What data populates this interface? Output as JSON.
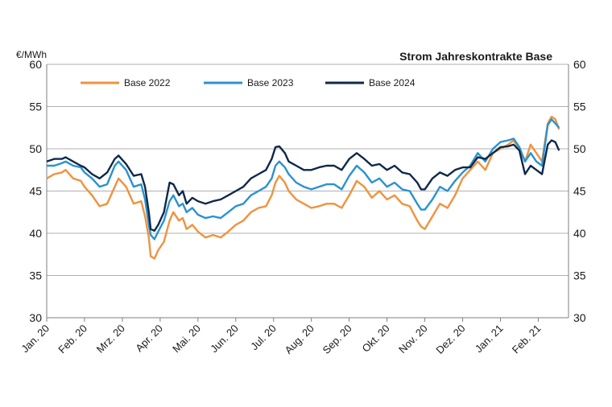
{
  "chart_data": {
    "type": "line",
    "title": "Strom Jahreskontrakte Base",
    "unit": "€/MWh",
    "xlabel": "",
    "ylabel": "",
    "ylim": [
      30,
      60
    ],
    "yticks": [
      30,
      35,
      40,
      45,
      50,
      55,
      60
    ],
    "ytick_labels": [
      "30",
      "35",
      "40",
      "45",
      "50",
      "55",
      "60"
    ],
    "secondary_y_axis": true,
    "x_range": [
      0,
      13.8
    ],
    "x_ticks": [
      {
        "x": 0,
        "label": "Jan. 20"
      },
      {
        "x": 1,
        "label": "Feb. 20"
      },
      {
        "x": 2,
        "label": "Mrz. 20"
      },
      {
        "x": 3,
        "label": "Apr. 20"
      },
      {
        "x": 4,
        "label": "Mai. 20"
      },
      {
        "x": 5,
        "label": "Jun. 20"
      },
      {
        "x": 6,
        "label": "Jul. 20"
      },
      {
        "x": 7,
        "label": "Aug. 20"
      },
      {
        "x": 8,
        "label": "Sep. 20"
      },
      {
        "x": 9,
        "label": "Okt. 20"
      },
      {
        "x": 10,
        "label": "Nov. 20"
      },
      {
        "x": 11,
        "label": "Dez. 20"
      },
      {
        "x": 12,
        "label": "Jan. 21"
      },
      {
        "x": 13,
        "label": "Feb. 21"
      }
    ],
    "grid": "horizontal",
    "legend": "top-left",
    "series": [
      {
        "name": "Base 2022",
        "color": "#f0923e",
        "points": [
          [
            0.0,
            46.5
          ],
          [
            0.2,
            47.0
          ],
          [
            0.4,
            47.2
          ],
          [
            0.5,
            47.5
          ],
          [
            0.7,
            46.5
          ],
          [
            0.9,
            46.2
          ],
          [
            1.0,
            45.5
          ],
          [
            1.2,
            44.5
          ],
          [
            1.4,
            43.2
          ],
          [
            1.6,
            43.5
          ],
          [
            1.8,
            45.5
          ],
          [
            1.9,
            46.5
          ],
          [
            2.1,
            45.5
          ],
          [
            2.3,
            43.5
          ],
          [
            2.5,
            43.8
          ],
          [
            2.6,
            42.0
          ],
          [
            2.7,
            39.5
          ],
          [
            2.75,
            37.3
          ],
          [
            2.85,
            37.0
          ],
          [
            2.95,
            38.0
          ],
          [
            3.1,
            39.0
          ],
          [
            3.25,
            41.5
          ],
          [
            3.35,
            42.5
          ],
          [
            3.5,
            41.5
          ],
          [
            3.6,
            41.8
          ],
          [
            3.7,
            40.5
          ],
          [
            3.85,
            41.0
          ],
          [
            4.0,
            40.2
          ],
          [
            4.2,
            39.5
          ],
          [
            4.4,
            39.8
          ],
          [
            4.6,
            39.5
          ],
          [
            4.8,
            40.2
          ],
          [
            5.0,
            41.0
          ],
          [
            5.2,
            41.5
          ],
          [
            5.4,
            42.5
          ],
          [
            5.6,
            43.0
          ],
          [
            5.8,
            43.2
          ],
          [
            5.95,
            44.5
          ],
          [
            6.05,
            46.0
          ],
          [
            6.15,
            46.8
          ],
          [
            6.3,
            46.0
          ],
          [
            6.4,
            45.0
          ],
          [
            6.6,
            44.0
          ],
          [
            6.8,
            43.5
          ],
          [
            7.0,
            43.0
          ],
          [
            7.2,
            43.2
          ],
          [
            7.4,
            43.5
          ],
          [
            7.6,
            43.5
          ],
          [
            7.8,
            43.0
          ],
          [
            8.0,
            44.5
          ],
          [
            8.2,
            46.2
          ],
          [
            8.4,
            45.5
          ],
          [
            8.6,
            44.2
          ],
          [
            8.8,
            45.0
          ],
          [
            9.0,
            44.0
          ],
          [
            9.2,
            44.5
          ],
          [
            9.4,
            43.5
          ],
          [
            9.6,
            43.2
          ],
          [
            9.8,
            41.5
          ],
          [
            9.9,
            40.8
          ],
          [
            10.0,
            40.5
          ],
          [
            10.2,
            42.0
          ],
          [
            10.4,
            43.5
          ],
          [
            10.6,
            43.0
          ],
          [
            10.8,
            44.5
          ],
          [
            11.0,
            46.5
          ],
          [
            11.2,
            47.5
          ],
          [
            11.4,
            48.5
          ],
          [
            11.6,
            47.5
          ],
          [
            11.8,
            49.5
          ],
          [
            12.0,
            50.0
          ],
          [
            12.2,
            50.5
          ],
          [
            12.35,
            51.0
          ],
          [
            12.5,
            50.0
          ],
          [
            12.65,
            48.5
          ],
          [
            12.8,
            50.5
          ],
          [
            12.95,
            49.5
          ],
          [
            13.1,
            48.5
          ],
          [
            13.25,
            53.0
          ],
          [
            13.35,
            53.8
          ],
          [
            13.45,
            53.5
          ],
          [
            13.55,
            52.3
          ]
        ]
      },
      {
        "name": "Base 2023",
        "color": "#2a92cf",
        "points": [
          [
            0.0,
            48.0
          ],
          [
            0.2,
            48.0
          ],
          [
            0.4,
            48.3
          ],
          [
            0.5,
            48.5
          ],
          [
            0.7,
            48.0
          ],
          [
            0.9,
            47.8
          ],
          [
            1.0,
            47.2
          ],
          [
            1.2,
            46.5
          ],
          [
            1.4,
            45.5
          ],
          [
            1.6,
            45.8
          ],
          [
            1.8,
            48.0
          ],
          [
            1.9,
            48.5
          ],
          [
            2.1,
            47.5
          ],
          [
            2.3,
            45.5
          ],
          [
            2.5,
            45.8
          ],
          [
            2.6,
            44.0
          ],
          [
            2.7,
            41.0
          ],
          [
            2.75,
            39.8
          ],
          [
            2.85,
            39.3
          ],
          [
            2.95,
            40.2
          ],
          [
            3.1,
            41.5
          ],
          [
            3.25,
            43.8
          ],
          [
            3.35,
            44.5
          ],
          [
            3.5,
            43.2
          ],
          [
            3.6,
            43.5
          ],
          [
            3.7,
            42.5
          ],
          [
            3.85,
            43.0
          ],
          [
            4.0,
            42.2
          ],
          [
            4.2,
            41.8
          ],
          [
            4.4,
            42.0
          ],
          [
            4.6,
            41.8
          ],
          [
            4.8,
            42.5
          ],
          [
            5.0,
            43.2
          ],
          [
            5.2,
            43.5
          ],
          [
            5.4,
            44.5
          ],
          [
            5.6,
            45.0
          ],
          [
            5.8,
            45.5
          ],
          [
            5.95,
            46.5
          ],
          [
            6.05,
            48.0
          ],
          [
            6.15,
            48.5
          ],
          [
            6.3,
            47.8
          ],
          [
            6.4,
            47.0
          ],
          [
            6.6,
            46.0
          ],
          [
            6.8,
            45.5
          ],
          [
            7.0,
            45.2
          ],
          [
            7.2,
            45.5
          ],
          [
            7.4,
            45.8
          ],
          [
            7.6,
            45.8
          ],
          [
            7.8,
            45.2
          ],
          [
            8.0,
            46.8
          ],
          [
            8.2,
            48.0
          ],
          [
            8.4,
            47.2
          ],
          [
            8.6,
            46.0
          ],
          [
            8.8,
            46.5
          ],
          [
            9.0,
            45.5
          ],
          [
            9.2,
            46.0
          ],
          [
            9.4,
            45.2
          ],
          [
            9.6,
            45.0
          ],
          [
            9.8,
            43.5
          ],
          [
            9.9,
            42.8
          ],
          [
            10.0,
            42.8
          ],
          [
            10.2,
            44.0
          ],
          [
            10.4,
            45.5
          ],
          [
            10.6,
            45.0
          ],
          [
            10.8,
            46.2
          ],
          [
            11.0,
            47.2
          ],
          [
            11.2,
            48.0
          ],
          [
            11.4,
            49.5
          ],
          [
            11.6,
            48.5
          ],
          [
            11.8,
            50.0
          ],
          [
            12.0,
            50.8
          ],
          [
            12.2,
            51.0
          ],
          [
            12.35,
            51.2
          ],
          [
            12.5,
            50.2
          ],
          [
            12.65,
            48.5
          ],
          [
            12.8,
            49.5
          ],
          [
            12.95,
            48.5
          ],
          [
            13.1,
            48.0
          ],
          [
            13.25,
            52.8
          ],
          [
            13.35,
            53.5
          ],
          [
            13.45,
            53.0
          ],
          [
            13.55,
            52.5
          ]
        ]
      },
      {
        "name": "Base 2024",
        "color": "#0f2849",
        "points": [
          [
            0.0,
            48.5
          ],
          [
            0.2,
            48.8
          ],
          [
            0.4,
            48.8
          ],
          [
            0.5,
            49.0
          ],
          [
            0.7,
            48.5
          ],
          [
            0.9,
            48.0
          ],
          [
            1.0,
            47.8
          ],
          [
            1.2,
            47.0
          ],
          [
            1.4,
            46.5
          ],
          [
            1.6,
            47.2
          ],
          [
            1.8,
            48.8
          ],
          [
            1.9,
            49.2
          ],
          [
            2.1,
            48.2
          ],
          [
            2.3,
            46.8
          ],
          [
            2.5,
            47.0
          ],
          [
            2.6,
            45.5
          ],
          [
            2.7,
            42.5
          ],
          [
            2.75,
            40.5
          ],
          [
            2.85,
            40.3
          ],
          [
            2.95,
            41.0
          ],
          [
            3.1,
            42.5
          ],
          [
            3.25,
            46.0
          ],
          [
            3.35,
            45.8
          ],
          [
            3.5,
            44.5
          ],
          [
            3.6,
            45.0
          ],
          [
            3.7,
            43.5
          ],
          [
            3.85,
            44.2
          ],
          [
            4.0,
            43.8
          ],
          [
            4.2,
            43.5
          ],
          [
            4.4,
            43.8
          ],
          [
            4.6,
            44.0
          ],
          [
            4.8,
            44.5
          ],
          [
            5.0,
            45.0
          ],
          [
            5.2,
            45.5
          ],
          [
            5.4,
            46.5
          ],
          [
            5.6,
            47.0
          ],
          [
            5.8,
            47.5
          ],
          [
            5.95,
            48.8
          ],
          [
            6.05,
            50.2
          ],
          [
            6.15,
            50.3
          ],
          [
            6.3,
            49.5
          ],
          [
            6.4,
            48.5
          ],
          [
            6.6,
            48.0
          ],
          [
            6.8,
            47.5
          ],
          [
            7.0,
            47.5
          ],
          [
            7.2,
            47.8
          ],
          [
            7.4,
            48.0
          ],
          [
            7.6,
            48.0
          ],
          [
            7.8,
            47.5
          ],
          [
            8.0,
            48.8
          ],
          [
            8.2,
            49.5
          ],
          [
            8.4,
            48.8
          ],
          [
            8.6,
            48.0
          ],
          [
            8.8,
            48.2
          ],
          [
            9.0,
            47.5
          ],
          [
            9.2,
            48.0
          ],
          [
            9.4,
            47.2
          ],
          [
            9.6,
            47.0
          ],
          [
            9.8,
            46.0
          ],
          [
            9.9,
            45.2
          ],
          [
            10.0,
            45.2
          ],
          [
            10.2,
            46.5
          ],
          [
            10.4,
            47.2
          ],
          [
            10.6,
            46.8
          ],
          [
            10.8,
            47.5
          ],
          [
            11.0,
            47.8
          ],
          [
            11.2,
            47.8
          ],
          [
            11.4,
            49.0
          ],
          [
            11.6,
            48.8
          ],
          [
            11.8,
            49.5
          ],
          [
            12.0,
            50.2
          ],
          [
            12.2,
            50.3
          ],
          [
            12.35,
            50.5
          ],
          [
            12.5,
            49.8
          ],
          [
            12.65,
            47.0
          ],
          [
            12.8,
            48.0
          ],
          [
            12.95,
            47.5
          ],
          [
            13.1,
            47.0
          ],
          [
            13.25,
            50.5
          ],
          [
            13.35,
            51.0
          ],
          [
            13.45,
            50.8
          ],
          [
            13.55,
            49.8
          ]
        ]
      }
    ]
  }
}
